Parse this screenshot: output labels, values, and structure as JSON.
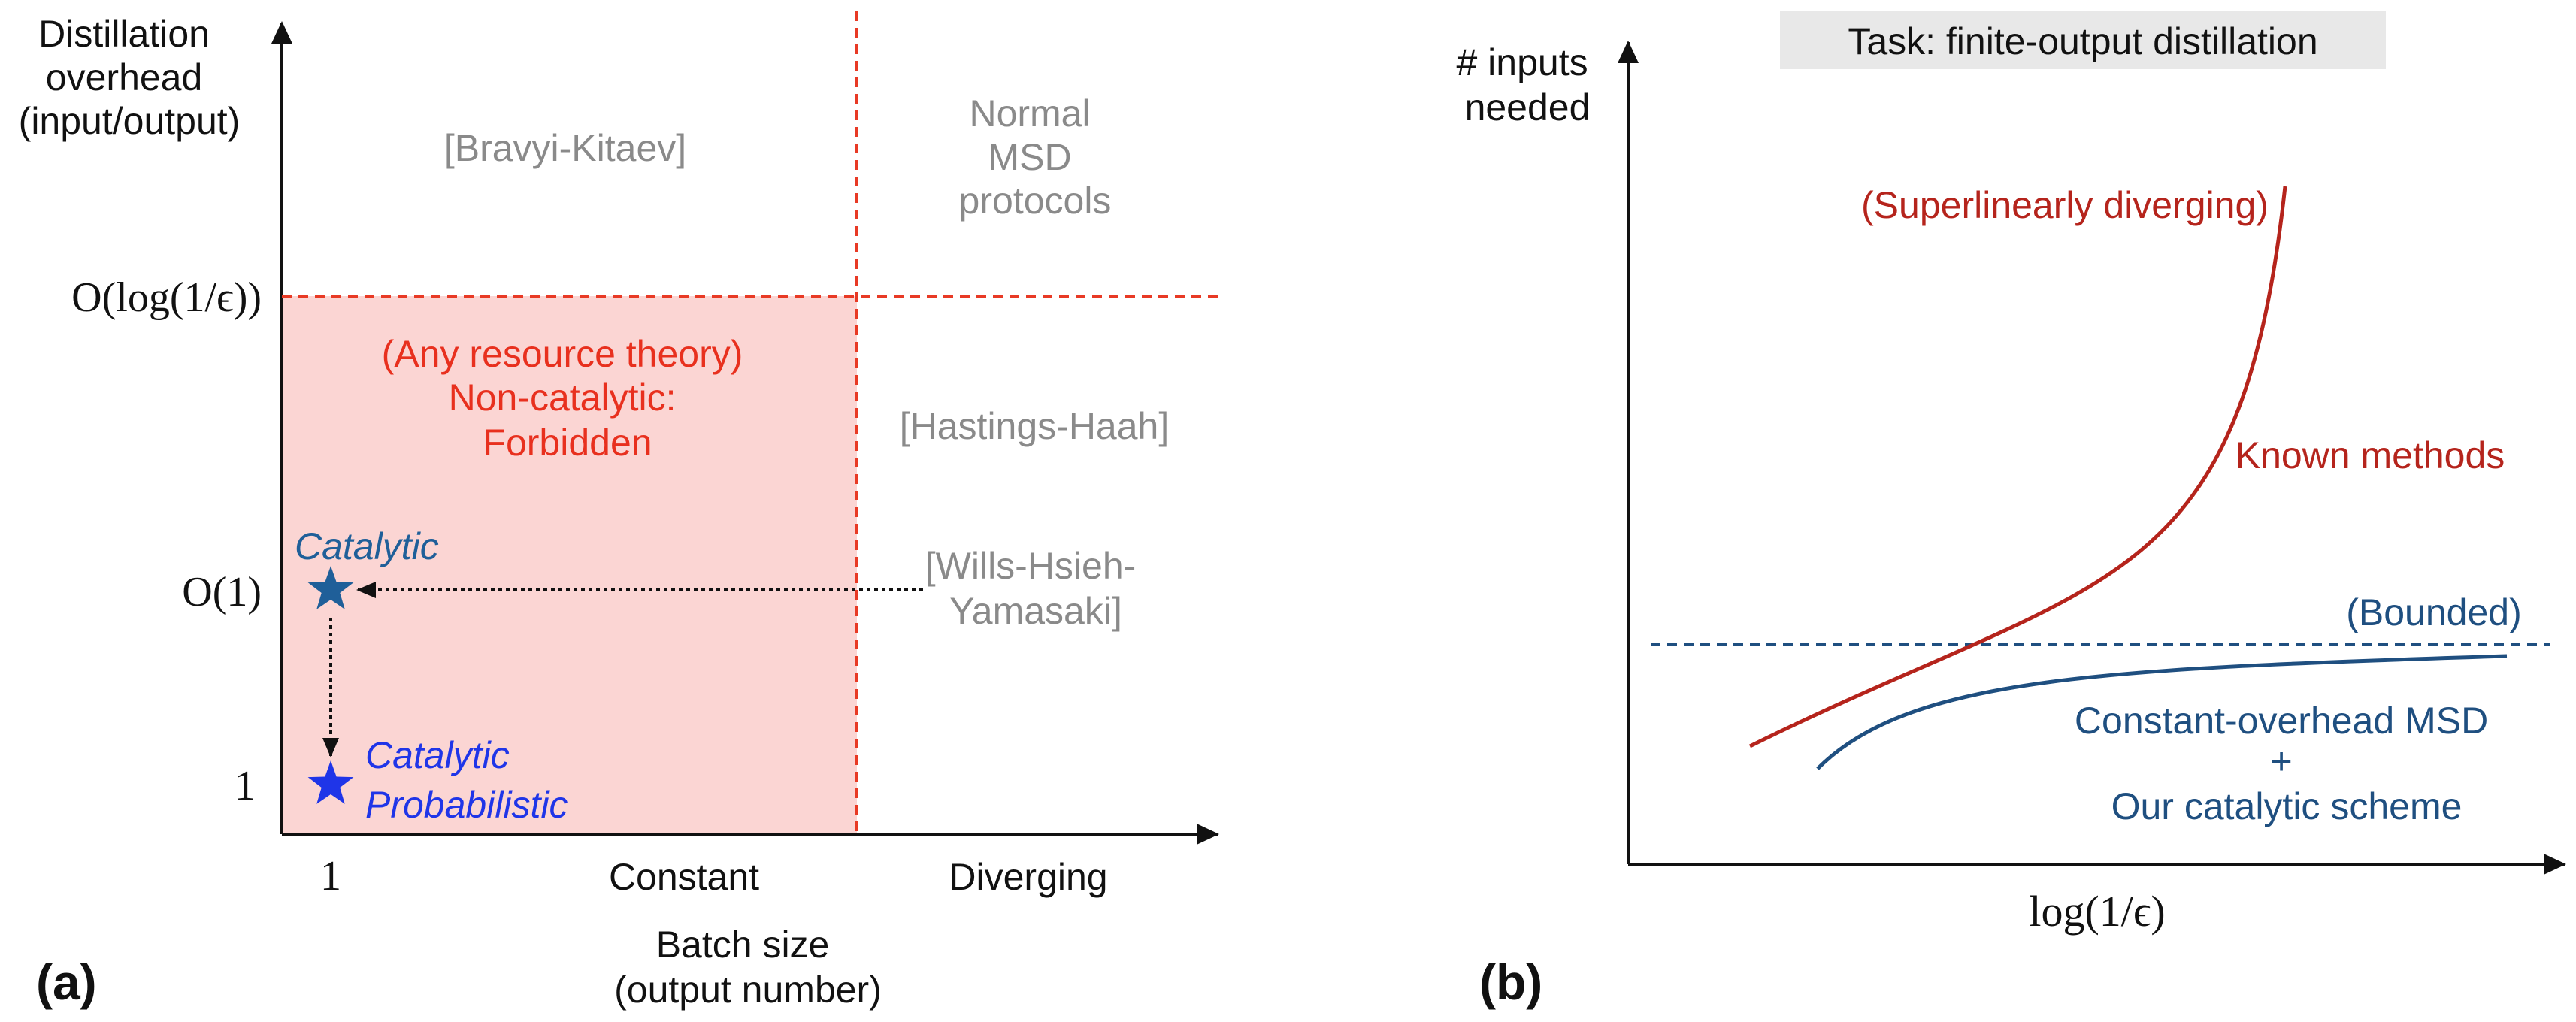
{
  "panel_a": {
    "label": "(a)",
    "y_axis_title": [
      "Distillation",
      "overhead",
      "(input/output)"
    ],
    "x_axis_title": [
      "Batch size",
      "(output number)"
    ],
    "y_ticks": {
      "log": "O(log(1/ϵ))",
      "const": "O(1)",
      "one": "1"
    },
    "x_ticks": {
      "one": "1",
      "constant": "Constant",
      "diverging": "Diverging"
    },
    "regions": {
      "top_left": "[Bravyi-Kitaev]",
      "top_right": [
        "Normal",
        "MSD",
        "protocols"
      ],
      "mid_right": "[Hastings-Haah]",
      "forbidden": [
        "(Any resource theory)",
        "Non-catalytic:",
        "Forbidden"
      ],
      "wills": [
        "[Wills-Hsieh-",
        "Yamasaki]"
      ]
    },
    "points": {
      "catalytic": "Catalytic",
      "catalytic_prob": [
        "Catalytic",
        "Probabilistic"
      ]
    },
    "colors": {
      "forbidden_fill": "#fbd5d3",
      "dashed": "#e83a25",
      "forbidden_text": "#e8301e",
      "catalytic": "#1f5f99",
      "probabilistic": "#1f35e8"
    }
  },
  "panel_b": {
    "label": "(b)",
    "task_box": "Task: finite-output distillation",
    "y_axis_title": [
      "# inputs",
      "needed"
    ],
    "x_axis_title": "log(1/ϵ)",
    "known_label": "Known methods",
    "superlinear_label": "(Superlinearly diverging)",
    "bounded_label": "(Bounded)",
    "ours_label": [
      "Constant-overhead MSD",
      "+",
      "Our catalytic scheme"
    ],
    "colors": {
      "known": "#b5241c",
      "ours": "#1f4f80",
      "task_bg": "#e8e8e8"
    }
  }
}
